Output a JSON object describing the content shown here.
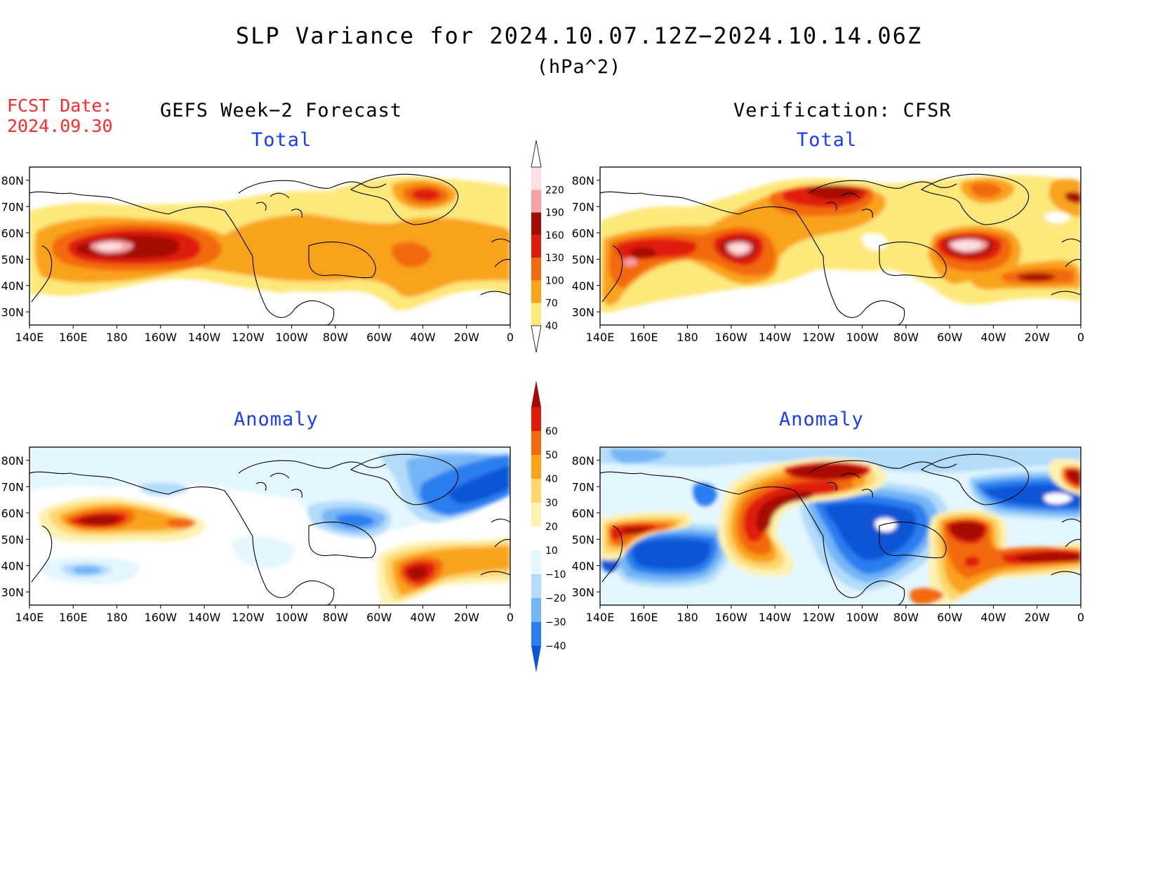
{
  "title": "SLP Variance for 2024.10.07.12Z−2024.10.14.06Z",
  "units": "(hPa^2)",
  "fcst_label": "FCST Date:",
  "fcst_date": "2024.09.30",
  "columns": {
    "left": "GEFS Week−2 Forecast",
    "right": "Verification: CFSR"
  },
  "panel_titles": {
    "total": "Total",
    "anomaly": "Anomaly"
  },
  "colors": {
    "title_text": "#000000",
    "fcst_text": "#ff2a2a",
    "panel_title_text": "#1a3cff"
  },
  "chart_data": {
    "type": "map",
    "projection": "lat-lon",
    "lon_range": "140E to 0",
    "lat_range": "~25N to ~85N",
    "x_tick_labels": [
      "140E",
      "160E",
      "180",
      "160W",
      "140W",
      "120W",
      "100W",
      "80W",
      "60W",
      "40W",
      "20W",
      "0"
    ],
    "y_tick_labels": [
      "30N",
      "40N",
      "50N",
      "60N",
      "70N",
      "80N"
    ],
    "panels": [
      "GEFS Total",
      "CFSR Total",
      "GEFS Anomaly",
      "CFSR Anomaly"
    ],
    "total_colorbar": {
      "levels": [
        "40",
        "70",
        "100",
        "130",
        "160",
        "190",
        "220"
      ],
      "colors": [
        "#fde87a",
        "#f9a21a",
        "#f26a10",
        "#e01b0c",
        "#a50c04",
        "#f4a2a6",
        "#fde0e2"
      ]
    },
    "anomaly_colorbar": {
      "levels": [
        "−40",
        "−30",
        "−20",
        "−10",
        "10",
        "20",
        "30",
        "40",
        "50",
        "60"
      ],
      "colors": [
        "#0c55d4",
        "#2a7ef0",
        "#73b5f5",
        "#b2dcfa",
        "#e4f6ff",
        "#ffffff",
        "#fdf2b3",
        "#fdd66c",
        "#f9a21a",
        "#f26a10",
        "#e01b0c",
        "#a50c04"
      ]
    }
  }
}
